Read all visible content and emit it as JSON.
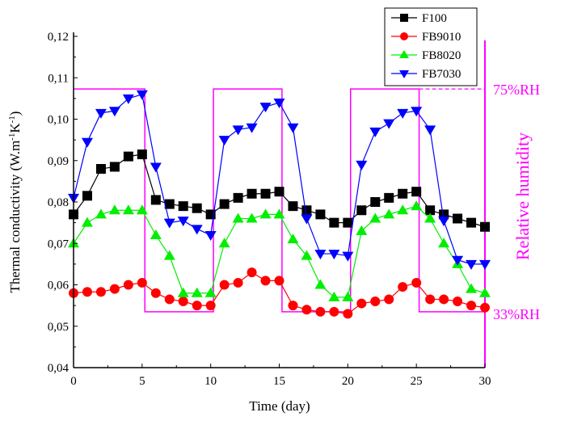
{
  "chart_data": {
    "type": "line",
    "xlabel": "Time (day)",
    "ylabel": "Thermal conductivity (W.m-1K-1)",
    "ylabel_parts": {
      "main": "Thermal conductivity (W.m",
      "sup1": "-1",
      "mid": "K",
      "sup2": "-1",
      "end": ")"
    },
    "xlim": [
      0,
      30
    ],
    "ylim": [
      0.04,
      0.12
    ],
    "xticks": [
      "0",
      "5",
      "10",
      "15",
      "20",
      "25",
      "30"
    ],
    "yticks": [
      "0,04",
      "0,05",
      "0,06",
      "0,07",
      "0,08",
      "0,09",
      "0,10",
      "0,11",
      "0,12"
    ],
    "legend_position": "top-right",
    "x": [
      0,
      1,
      2,
      3,
      4,
      5,
      6,
      7,
      8,
      9,
      10,
      11,
      12,
      13,
      14,
      15,
      16,
      17,
      18,
      19,
      20,
      21,
      22,
      23,
      24,
      25,
      26,
      27,
      28,
      29,
      30
    ],
    "series": [
      {
        "name": "F100",
        "color": "#000000",
        "marker": "square",
        "values": [
          0.077,
          0.0815,
          0.088,
          0.0885,
          0.091,
          0.0915,
          0.0805,
          0.0795,
          0.079,
          0.0785,
          0.077,
          0.0795,
          0.081,
          0.082,
          0.082,
          0.0825,
          0.079,
          0.078,
          0.077,
          0.075,
          0.075,
          0.078,
          0.08,
          0.081,
          0.082,
          0.0825,
          0.078,
          0.077,
          0.076,
          0.075,
          0.074
        ]
      },
      {
        "name": "FB9010",
        "color": "#ff0000",
        "marker": "circle",
        "values": [
          0.058,
          0.0583,
          0.0583,
          0.059,
          0.06,
          0.0605,
          0.058,
          0.0565,
          0.056,
          0.055,
          0.055,
          0.06,
          0.0605,
          0.063,
          0.061,
          0.061,
          0.055,
          0.054,
          0.0535,
          0.0535,
          0.053,
          0.0555,
          0.056,
          0.0565,
          0.0595,
          0.0605,
          0.0565,
          0.0565,
          0.056,
          0.055,
          0.0545
        ]
      },
      {
        "name": "FB8020",
        "color": "#00ee00",
        "marker": "triangle-up",
        "values": [
          0.07,
          0.075,
          0.077,
          0.078,
          0.078,
          0.078,
          0.072,
          0.067,
          0.058,
          0.058,
          0.058,
          0.07,
          0.076,
          0.076,
          0.077,
          0.077,
          0.071,
          0.067,
          0.06,
          0.057,
          0.057,
          0.073,
          0.076,
          0.077,
          0.078,
          0.079,
          0.076,
          0.07,
          0.065,
          0.059,
          0.058
        ]
      },
      {
        "name": "FB7030",
        "color": "#0000ff",
        "marker": "triangle-down",
        "values": [
          0.081,
          0.0945,
          0.1015,
          0.102,
          0.105,
          0.106,
          0.0885,
          0.075,
          0.0755,
          0.0735,
          0.072,
          0.095,
          0.0975,
          0.098,
          0.103,
          0.104,
          0.098,
          0.076,
          0.0675,
          0.0675,
          0.067,
          0.089,
          0.097,
          0.099,
          0.1015,
          0.102,
          0.0975,
          0.0755,
          0.066,
          0.065,
          0.065
        ]
      }
    ],
    "humidity": {
      "color": "#ff00ff",
      "axis_label": "Relative humidity",
      "high_label": "75%RH",
      "low_label": "33%RH",
      "steps": [
        {
          "from": 0,
          "to": 5.2,
          "level": "high"
        },
        {
          "from": 5.2,
          "to": 10.2,
          "level": "low"
        },
        {
          "from": 10.2,
          "to": 15.2,
          "level": "high"
        },
        {
          "from": 15.2,
          "to": 20.2,
          "level": "low"
        },
        {
          "from": 20.2,
          "to": 25.2,
          "level": "high"
        },
        {
          "from": 25.2,
          "to": 30,
          "level": "low"
        }
      ]
    }
  }
}
